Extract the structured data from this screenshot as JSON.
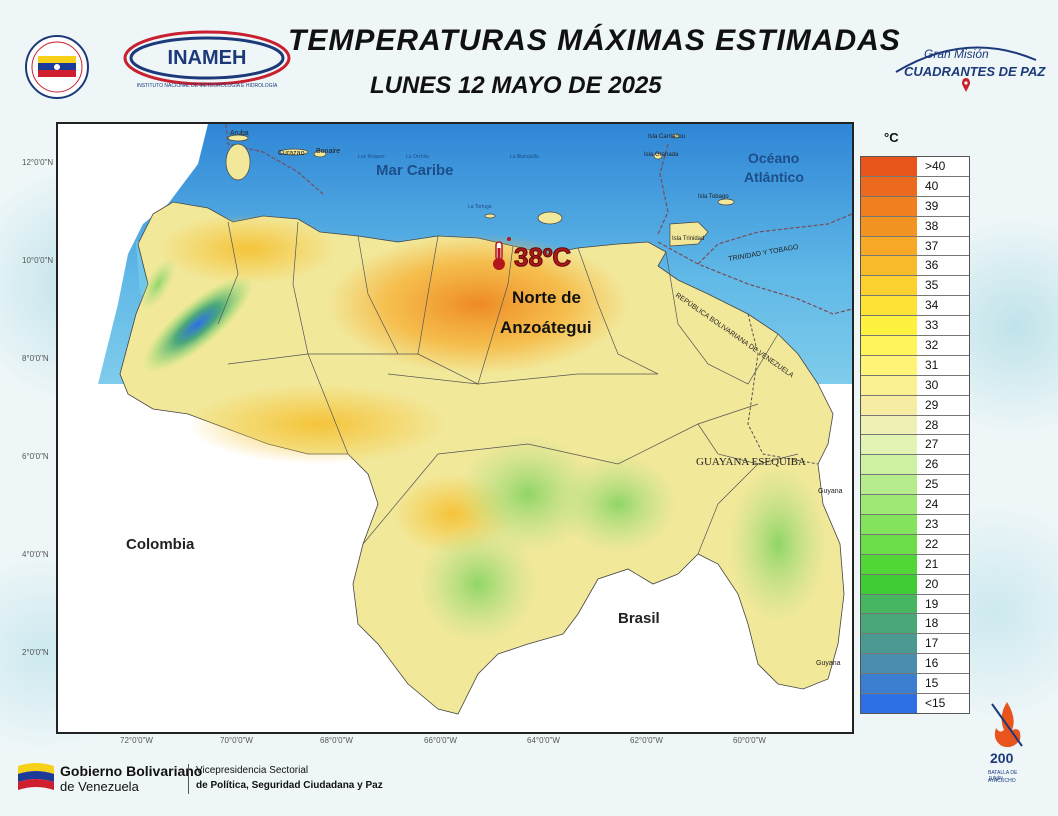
{
  "header": {
    "title": "TEMPERATURAS MÁXIMAS ESTIMADAS",
    "subtitle": "LUNES 12 MAYO DE 2025",
    "logo_left_text": "INAMEH",
    "logo_left_subtext": "INSTITUTO NACIONAL DE METEOROLOGÍA E HIDROLOGÍA",
    "logo_right_line1": "Gran Misión",
    "logo_right_line2": "CUADRANTES DE PAZ"
  },
  "map": {
    "labels": {
      "mar_caribe": "Mar Caribe",
      "oceano": "Océano",
      "atlantico": "Atlántico",
      "colombia": "Colombia",
      "brasil": "Brasil",
      "guayana_esequiba": "GUAYANA ESEQUIBA",
      "guyana_1": "Guyana",
      "guyana_2": "Guyana",
      "trinidad_tobago": "TRINIDAD Y TOBAGO",
      "republica": "REPÚBLICA BOLIVARIANA DE VENEZUELA",
      "aruba": "Aruba",
      "curazao": "Curazao",
      "bonaire": "Bonaire",
      "los_roques": "Los Roques",
      "la_orchila": "La Orchila",
      "la_blanquilla": "La Blanquilla",
      "la_tortuga": "La Tortuga",
      "carriacou": "Isla Carriacou",
      "granada": "Isla Granada",
      "tobago": "Isla Tobago",
      "trinidad": "Isla Trinidad"
    },
    "highlight": {
      "value": "38ºC",
      "region_line1": "Norte de",
      "region_line2": "Anzoátegui"
    },
    "lat_ticks": [
      "12°0'0\"N",
      "10°0'0\"N",
      "8°0'0\"N",
      "6°0'0\"N",
      "4°0'0\"N",
      "2°0'0\"N"
    ],
    "lon_ticks": [
      "72°0'0\"W",
      "70°0'0\"W",
      "68°0'0\"W",
      "66°0'0\"W",
      "64°0'0\"W",
      "62°0'0\"W",
      "60°0'0\"W"
    ]
  },
  "legend": {
    "unit": "°C",
    "items": [
      {
        "label": ">40",
        "color": "#e8541c"
      },
      {
        "label": "40",
        "color": "#ec6a1e"
      },
      {
        "label": "39",
        "color": "#f07f20"
      },
      {
        "label": "38",
        "color": "#f39422"
      },
      {
        "label": "37",
        "color": "#f6a826"
      },
      {
        "label": "36",
        "color": "#f8bc2a"
      },
      {
        "label": "35",
        "color": "#fbd02f"
      },
      {
        "label": "34",
        "color": "#fde335"
      },
      {
        "label": "33",
        "color": "#fff13f"
      },
      {
        "label": "32",
        "color": "#fff55b"
      },
      {
        "label": "31",
        "color": "#fff378"
      },
      {
        "label": "30",
        "color": "#fbf08f"
      },
      {
        "label": "29",
        "color": "#f6eda3"
      },
      {
        "label": "28",
        "color": "#eff0b3"
      },
      {
        "label": "27",
        "color": "#e3f3b4"
      },
      {
        "label": "26",
        "color": "#cdf0a1"
      },
      {
        "label": "25",
        "color": "#b6ec8b"
      },
      {
        "label": "24",
        "color": "#9ee874"
      },
      {
        "label": "23",
        "color": "#84e35d"
      },
      {
        "label": "22",
        "color": "#6bdd48"
      },
      {
        "label": "21",
        "color": "#52d636"
      },
      {
        "label": "20",
        "color": "#3ecb34"
      },
      {
        "label": "19",
        "color": "#46b660"
      },
      {
        "label": "18",
        "color": "#4aa77a"
      },
      {
        "label": "17",
        "color": "#4b9a91"
      },
      {
        "label": "16",
        "color": "#4a8dac"
      },
      {
        "label": "15",
        "color": "#3c7fd0"
      },
      {
        "label": "<15",
        "color": "#2f6fe6"
      }
    ]
  },
  "footer": {
    "gob_line1": "Gobierno Bolivariano",
    "gob_line2": "de Venezuela",
    "vp_line1": "Vicepresidencia Sectorial",
    "vp_line2": "de Política, Seguridad Ciudadana y Paz",
    "bicentenario_number": "200",
    "bicentenario_line1": "BATALLA DE JUNÍN",
    "bicentenario_line2": "AYACUCHO"
  },
  "colors": {
    "sea": "#6fc6e8",
    "deep_sea": "#3a8fd4",
    "land_base": "#f2e89a",
    "hot": "#f39a2a",
    "highlight_text": "#b4161b"
  }
}
